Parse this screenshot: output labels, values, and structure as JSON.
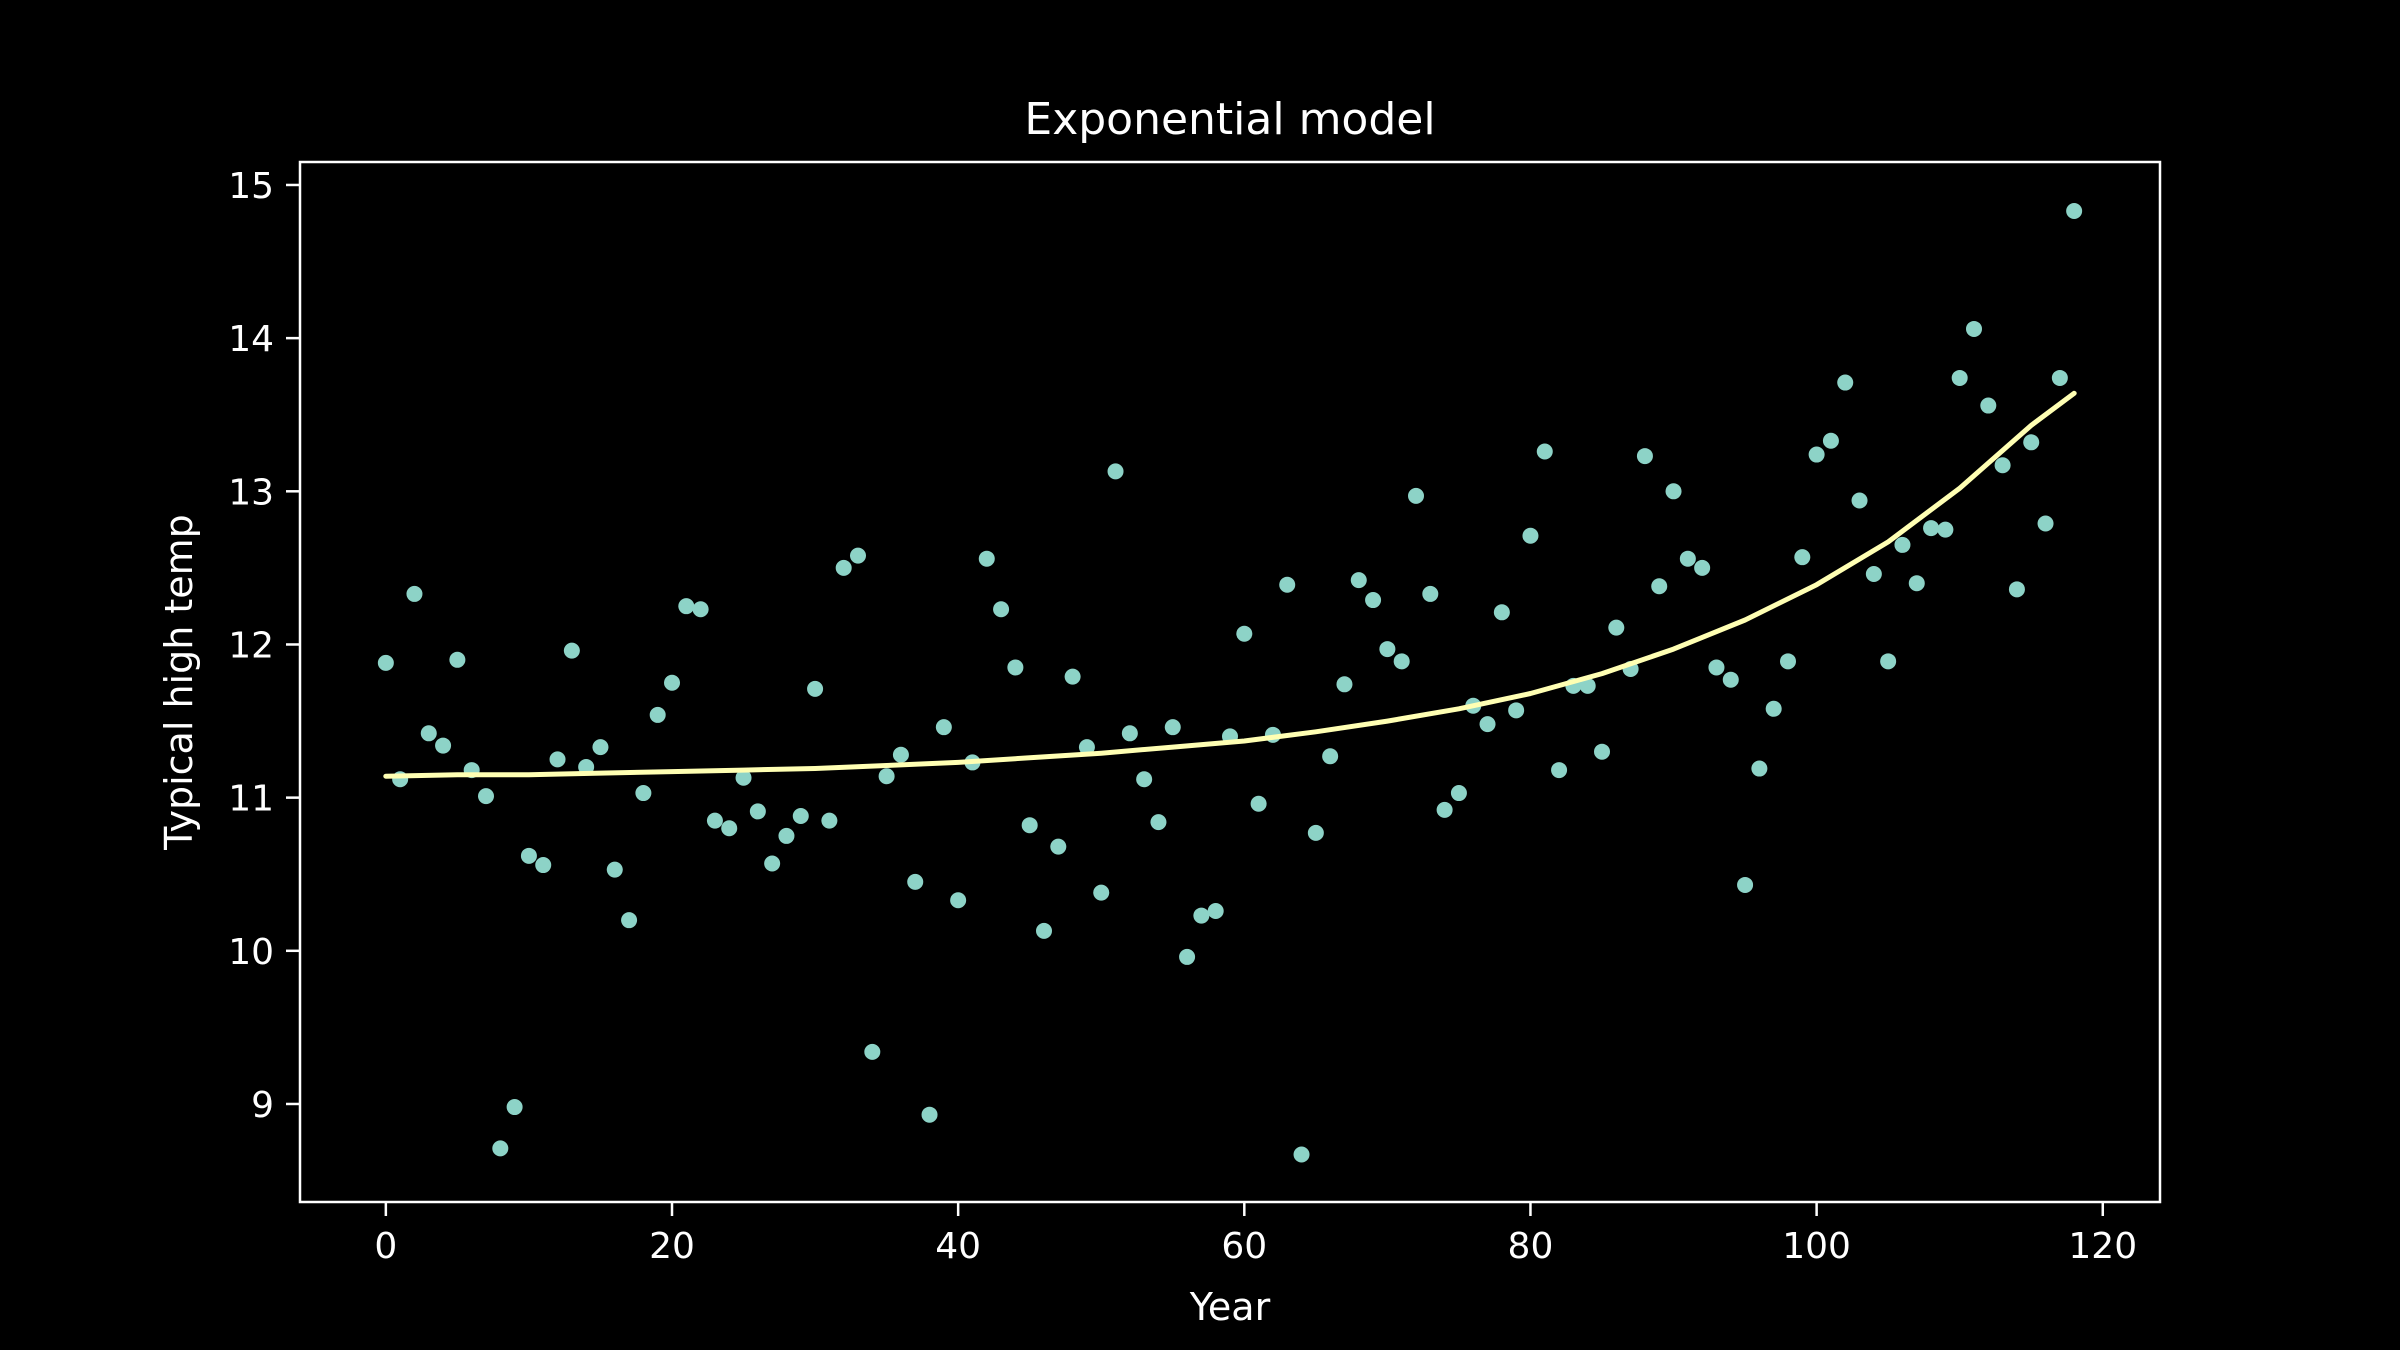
{
  "chart_data": {
    "type": "scatter",
    "title": "Exponential model",
    "xlabel": "Year",
    "ylabel": "Typical high temp",
    "xlim": [
      -6,
      124
    ],
    "ylim": [
      8.36,
      15.15
    ],
    "xticks": [
      0,
      20,
      40,
      60,
      80,
      100,
      120
    ],
    "yticks": [
      9,
      10,
      11,
      12,
      13,
      14,
      15
    ],
    "grid": false,
    "colors": {
      "background": "#000000",
      "points": "#8dd3c7",
      "fit_line": "#ffffb3",
      "axes": "#ffffff"
    },
    "series": [
      {
        "kind": "points",
        "x": [
          0,
          1,
          2,
          3,
          4,
          5,
          6,
          7,
          8,
          9,
          10,
          11,
          12,
          13,
          14,
          15,
          16,
          17,
          18,
          19,
          20,
          21,
          22,
          23,
          24,
          25,
          26,
          27,
          28,
          29,
          30,
          31,
          32,
          33,
          34,
          35,
          36,
          37,
          38,
          39,
          40,
          41,
          42,
          43,
          44,
          45,
          46,
          47,
          48,
          49,
          50,
          51,
          52,
          53,
          54,
          55,
          56,
          57,
          58,
          59,
          60,
          61,
          62,
          63,
          64,
          65,
          66,
          67,
          68,
          69,
          70,
          71,
          72,
          73,
          74,
          75,
          76,
          77,
          78,
          79,
          80,
          81,
          82,
          83,
          84,
          85,
          86,
          87,
          88,
          89,
          90,
          91,
          92,
          93,
          94,
          95,
          96,
          97,
          98,
          99,
          100,
          101,
          102,
          103,
          104,
          105,
          106,
          107,
          108,
          109,
          110,
          111,
          112,
          113,
          114,
          115,
          116,
          117,
          118
        ],
        "y": [
          11.88,
          11.12,
          12.33,
          11.42,
          11.34,
          11.9,
          11.18,
          11.01,
          8.71,
          8.98,
          10.62,
          10.56,
          11.25,
          11.96,
          11.2,
          11.33,
          10.53,
          10.2,
          11.03,
          11.54,
          11.75,
          12.25,
          12.23,
          10.85,
          10.8,
          11.13,
          10.91,
          10.57,
          10.75,
          10.88,
          11.71,
          10.85,
          12.5,
          12.58,
          9.34,
          11.14,
          11.28,
          10.45,
          8.93,
          11.46,
          10.33,
          11.23,
          12.56,
          12.23,
          11.85,
          10.82,
          10.13,
          10.68,
          11.79,
          11.33,
          10.38,
          13.13,
          11.42,
          11.12,
          10.84,
          11.46,
          9.96,
          10.23,
          10.26,
          11.4,
          12.07,
          10.96,
          11.41,
          12.39,
          8.67,
          10.77,
          11.27,
          11.74,
          12.42,
          12.29,
          11.97,
          11.89,
          12.97,
          12.33,
          10.92,
          11.03,
          11.6,
          11.48,
          12.21,
          11.57,
          12.71,
          13.26,
          11.18,
          11.73,
          11.73,
          11.3,
          12.11,
          11.84,
          13.23,
          12.38,
          13.0,
          12.56,
          12.5,
          11.85,
          11.77,
          10.43,
          11.19,
          11.58,
          11.89,
          12.57,
          13.24,
          13.33,
          13.71,
          12.94,
          12.46,
          11.89,
          12.65,
          12.4,
          12.76,
          12.75,
          13.74,
          14.06,
          13.56,
          13.17,
          12.36,
          13.32,
          12.79,
          13.74,
          14.83
        ]
      },
      {
        "kind": "fitted_curve",
        "x": [
          0,
          5,
          10,
          15,
          20,
          25,
          30,
          35,
          40,
          45,
          50,
          55,
          60,
          65,
          70,
          75,
          80,
          85,
          90,
          95,
          100,
          105,
          110,
          115,
          118
        ],
        "y": [
          11.14,
          11.15,
          11.15,
          11.16,
          11.17,
          11.18,
          11.19,
          11.21,
          11.23,
          11.26,
          11.29,
          11.33,
          11.37,
          11.43,
          11.5,
          11.58,
          11.68,
          11.81,
          11.97,
          12.16,
          12.39,
          12.67,
          13.02,
          13.43,
          13.64
        ]
      }
    ]
  }
}
